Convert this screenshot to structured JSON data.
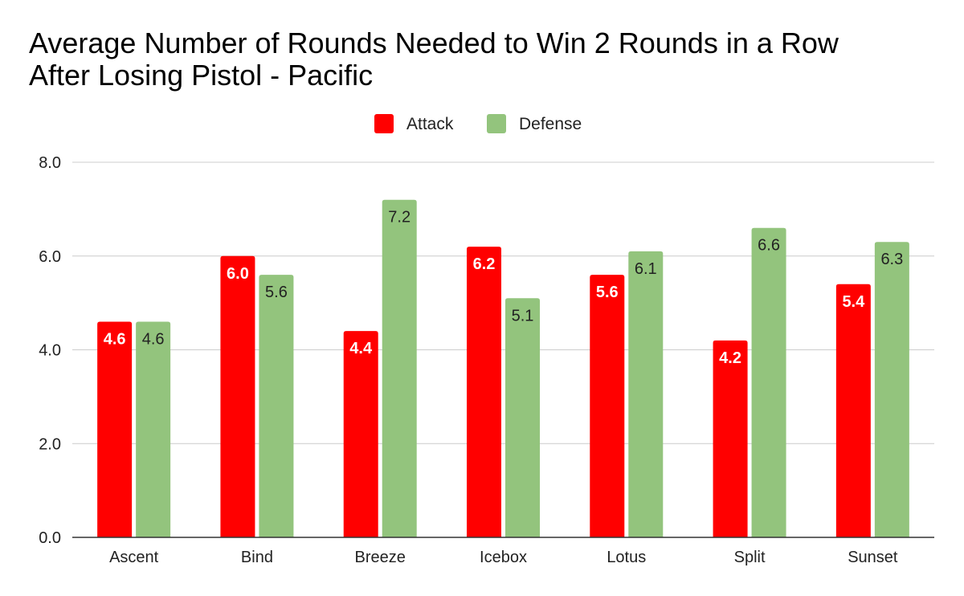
{
  "chart_data": {
    "type": "bar",
    "title_lines": [
      "Average Number of Rounds Needed to Win 2 Rounds in a Row",
      "After Losing Pistol - Pacific"
    ],
    "categories": [
      "Ascent",
      "Bind",
      "Breeze",
      "Icebox",
      "Lotus",
      "Split",
      "Sunset"
    ],
    "series": [
      {
        "name": "Attack",
        "color": "#ff0000",
        "label_color": "#ffffff",
        "values": [
          4.6,
          6.0,
          4.4,
          6.2,
          5.6,
          4.2,
          5.4
        ],
        "labels": [
          "4.6",
          "6.0",
          "4.4",
          "6.2",
          "5.6",
          "4.2",
          "5.4"
        ]
      },
      {
        "name": "Defense",
        "color": "#93c47d",
        "label_color": "#222222",
        "values": [
          4.6,
          5.6,
          7.2,
          5.1,
          6.1,
          6.6,
          6.3
        ],
        "labels": [
          "4.6",
          "5.6",
          "7.2",
          "5.1",
          "6.1",
          "6.6",
          "6.3"
        ]
      }
    ],
    "ylim": [
      0,
      8
    ],
    "yticks": [
      0,
      2,
      4,
      6,
      8
    ],
    "ytick_labels": [
      "0.0",
      "2.0",
      "4.0",
      "6.0",
      "8.0"
    ],
    "xlabel": "",
    "ylabel": "",
    "grid": true,
    "legend_position": "top-center"
  }
}
